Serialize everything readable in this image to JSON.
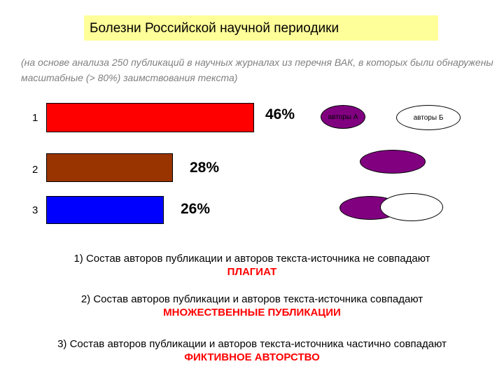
{
  "title": "Болезни Российской научной периодики",
  "subtitle": "(на основе анализа 250 публикаций в научных журналах из перечня ВАК, в которых были обнаружены масштабные (> 80%) заимствования текста)",
  "chart_data": {
    "type": "bar",
    "categories": [
      "1",
      "2",
      "3"
    ],
    "values": [
      46,
      28,
      26
    ],
    "value_labels": [
      "46%",
      "28%",
      "26%"
    ],
    "colors": [
      "#ff0000",
      "#993300",
      "#0000ff"
    ],
    "orientation": "horizontal"
  },
  "venn": {
    "label_a": "авторы А",
    "label_b": "авторы Б",
    "color_a": "#800080",
    "color_b": "#ffffff"
  },
  "explanations": [
    {
      "text": "1)  Состав авторов публикации и авторов текста-источника не совпадают",
      "term": "ПЛАГИАТ"
    },
    {
      "text": "2)  Состав авторов публикации и авторов текста-источника совпадают",
      "term": "МНОЖЕСТВЕННЫЕ ПУБЛИКАЦИИ"
    },
    {
      "text": "3) Состав авторов публикации и авторов текста-источника частично совпадают",
      "term": "ФИКТИВНОЕ АВТОРСТВО"
    }
  ]
}
